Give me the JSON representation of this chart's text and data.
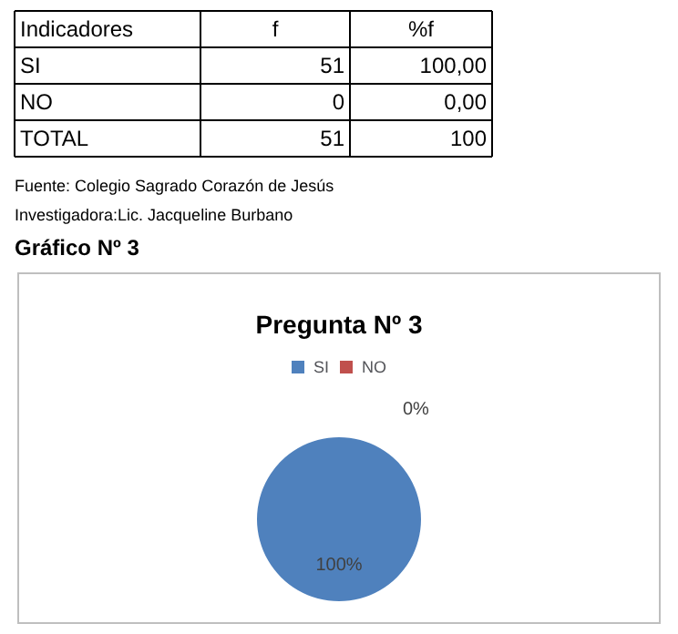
{
  "chart_data": {
    "type": "pie",
    "title": "Pregunta Nº 3",
    "categories": [
      "SI",
      "NO"
    ],
    "values": [
      100,
      0
    ],
    "colors": [
      "#4f81bd",
      "#c0504d"
    ],
    "value_labels": [
      "100%",
      "0%"
    ],
    "legend": "top",
    "annotations": [
      "Indicadores",
      "f",
      "%f",
      "SI",
      "51",
      "100,00",
      "NO",
      "0",
      "0,00",
      "TOTAL",
      "51",
      "100",
      "Fuente: Colegio Sagrado Corazón de Jesús",
      "Investigadora:Lic. Jacqueline Burbano",
      "Gráfico Nº 3"
    ]
  }
}
